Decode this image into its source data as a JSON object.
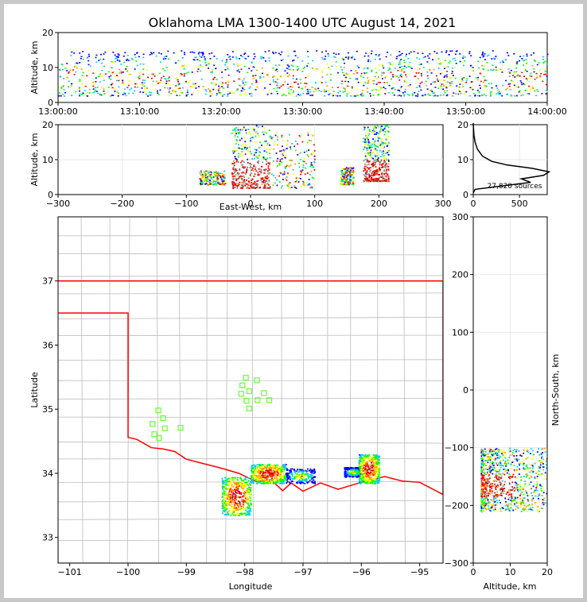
{
  "colors": {
    "background": "#ffffff",
    "frame": "#c8c8c8",
    "county_lines": "#bbbbbb",
    "state_border": "#ff0000",
    "stations": "#66ff33",
    "density": [
      "#0000ff",
      "#00ccff",
      "#00ff00",
      "#ffff00",
      "#ff9900",
      "#ff0000",
      "#cc0000",
      "#888888",
      "#ffffff",
      "#000000"
    ]
  },
  "chart_data": [
    {
      "type": "scatter",
      "id": "time_height",
      "title": "Oklahoma LMA 1300-1400 UTC August 14, 2021",
      "ylabel": "Altitude, km",
      "xlim": [
        "13:00:00",
        "14:00:00"
      ],
      "ylim": [
        0,
        20
      ],
      "xticks": [
        "13:00:00",
        "13:10:00",
        "13:20:00",
        "13:30:00",
        "13:40:00",
        "13:50:00",
        "14:00:00"
      ],
      "yticks": [
        "0",
        "10",
        "20"
      ],
      "clusters_minutes": [
        [
          0,
          60
        ]
      ],
      "altitude_band_km": [
        2,
        16
      ]
    },
    {
      "type": "scatter",
      "id": "ew_height",
      "xlabel": "East-West, km",
      "ylabel": "Altitude, km",
      "xlim": [
        -300,
        300
      ],
      "ylim": [
        0,
        20
      ],
      "xticks": [
        "−300",
        "−200",
        "−100",
        "0",
        "100",
        "200",
        "300"
      ],
      "yticks": [
        "0",
        "10",
        "20"
      ],
      "clusters": [
        {
          "x": [
            -80,
            -40
          ],
          "alt": [
            3,
            7
          ]
        },
        {
          "x": [
            -30,
            30
          ],
          "alt": [
            2,
            20
          ],
          "core": true
        },
        {
          "x": 30,
          "x2": 100,
          "alt": [
            2,
            18
          ]
        },
        {
          "x": [
            140,
            160
          ],
          "alt": [
            3,
            8
          ]
        },
        {
          "x": [
            175,
            215
          ],
          "alt": [
            4,
            20
          ],
          "core": true
        }
      ]
    },
    {
      "type": "line",
      "id": "altitude_histogram",
      "xlim": [
        0,
        800
      ],
      "ylim": [
        0,
        20
      ],
      "xticks": [
        "0",
        "500"
      ],
      "yticks": [
        "0",
        "10",
        "20"
      ],
      "annotation": "27,820 sources",
      "profile": [
        {
          "alt": 0.5,
          "count": 0
        },
        {
          "alt": 1.5,
          "count": 20
        },
        {
          "alt": 2.5,
          "count": 320
        },
        {
          "alt": 3.5,
          "count": 620
        },
        {
          "alt": 4.5,
          "count": 520
        },
        {
          "alt": 5.5,
          "count": 760
        },
        {
          "alt": 6.5,
          "count": 820
        },
        {
          "alt": 7.5,
          "count": 640
        },
        {
          "alt": 8.5,
          "count": 360
        },
        {
          "alt": 9.5,
          "count": 200
        },
        {
          "alt": 11,
          "count": 100
        },
        {
          "alt": 13,
          "count": 45
        },
        {
          "alt": 15,
          "count": 20
        },
        {
          "alt": 17,
          "count": 8
        },
        {
          "alt": 19,
          "count": 3
        },
        {
          "alt": 20.5,
          "count": 0
        }
      ]
    },
    {
      "type": "scatter",
      "id": "plan_view",
      "xlabel": "Longitude",
      "ylabel": "Latitude",
      "xlim": [
        -101.2,
        -94.6
      ],
      "ylim": [
        32.6,
        38.0
      ],
      "xticks": [
        "−101",
        "−100",
        "−99",
        "−98",
        "−97",
        "−96",
        "−95"
      ],
      "yticks": [
        "33",
        "34",
        "35",
        "36",
        "37"
      ],
      "stations": [
        [
          -99.48,
          34.98
        ],
        [
          -99.4,
          34.86
        ],
        [
          -99.58,
          34.77
        ],
        [
          -99.37,
          34.7
        ],
        [
          -99.55,
          34.61
        ],
        [
          -99.47,
          34.55
        ],
        [
          -99.1,
          34.71
        ],
        [
          -97.98,
          35.49
        ],
        [
          -97.79,
          35.45
        ],
        [
          -98.04,
          35.37
        ],
        [
          -97.92,
          35.28
        ],
        [
          -98.06,
          35.24
        ],
        [
          -97.67,
          35.25
        ],
        [
          -97.97,
          35.13
        ],
        [
          -97.78,
          35.14
        ],
        [
          -97.58,
          35.14
        ],
        [
          -97.92,
          35.01
        ]
      ],
      "lightning_clusters": [
        {
          "lon": [
            -98.4,
            -97.9
          ],
          "lat": [
            33.35,
            33.95
          ],
          "core": true
        },
        {
          "lon": [
            -97.9,
            -97.3
          ],
          "lat": [
            33.85,
            34.15
          ],
          "core": true
        },
        {
          "lon": [
            -97.3,
            -96.8
          ],
          "lat": [
            33.85,
            34.08
          ]
        },
        {
          "lon": [
            -96.3,
            -96.0
          ],
          "lat": [
            33.95,
            34.1
          ]
        },
        {
          "lon": [
            -96.05,
            -95.7
          ],
          "lat": [
            33.85,
            34.3
          ],
          "core": true
        }
      ]
    },
    {
      "type": "scatter",
      "id": "ns_altitude",
      "xlabel": "Altitude, km",
      "ylabel": "North-South, km",
      "xlim": [
        0,
        20
      ],
      "ylim": [
        -300,
        300
      ],
      "xticks": [
        "0",
        "10",
        "20"
      ],
      "yticks": [
        "−300",
        "−200",
        "−100",
        "0",
        "100",
        "200",
        "300"
      ],
      "clusters": [
        {
          "alt": [
            2,
            20
          ],
          "ns": [
            -210,
            -100
          ],
          "core_ns": [
            -185,
            -145
          ]
        }
      ]
    }
  ]
}
